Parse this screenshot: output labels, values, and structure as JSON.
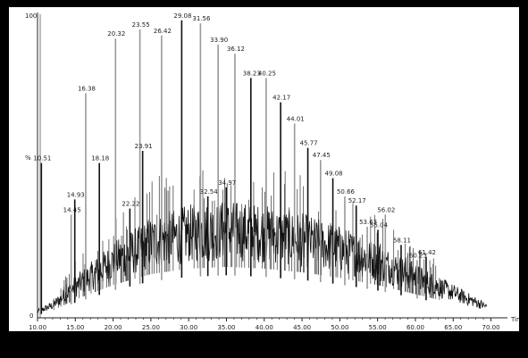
{
  "chart_data": {
    "type": "line",
    "xlabel": "Time",
    "ylabel": "%",
    "xlim": [
      10.0,
      71.0
    ],
    "ylim": [
      0,
      100
    ],
    "y_tick_labels": [
      "0",
      "100"
    ],
    "x_ticks": [
      10,
      15,
      20,
      25,
      30,
      35,
      40,
      45,
      50,
      55,
      60,
      65,
      70
    ],
    "x_tick_labels": [
      "10.00",
      "15.00",
      "20.00",
      "25.00",
      "30.00",
      "35.00",
      "40.00",
      "45.00",
      "50.00",
      "55.00",
      "60.00",
      "65.00",
      "70.00"
    ],
    "grid": false,
    "series": [
      {
        "labeled_peaks": [
          {
            "label": "10.51",
            "x": 10.51,
            "y": 51
          },
          {
            "label": "14.45",
            "x": 14.45,
            "y": 34
          },
          {
            "label": "14.93",
            "x": 14.93,
            "y": 39
          },
          {
            "label": "16.38",
            "x": 16.38,
            "y": 74
          },
          {
            "label": "18.18",
            "x": 18.18,
            "y": 51
          },
          {
            "label": "20.32",
            "x": 20.32,
            "y": 92
          },
          {
            "label": "22.22",
            "x": 22.22,
            "y": 36
          },
          {
            "label": "23.55",
            "x": 23.55,
            "y": 95
          },
          {
            "label": "23.91",
            "x": 23.91,
            "y": 55
          },
          {
            "label": "26.42",
            "x": 26.42,
            "y": 93
          },
          {
            "label": "29.08",
            "x": 29.08,
            "y": 98
          },
          {
            "label": "31.56",
            "x": 31.56,
            "y": 97
          },
          {
            "label": "32.54",
            "x": 32.54,
            "y": 40
          },
          {
            "label": "33.90",
            "x": 33.9,
            "y": 90
          },
          {
            "label": "34.97",
            "x": 34.97,
            "y": 43
          },
          {
            "label": "36.12",
            "x": 36.12,
            "y": 87
          },
          {
            "label": "38.23",
            "x": 38.23,
            "y": 79
          },
          {
            "label": "40.25",
            "x": 40.25,
            "y": 79
          },
          {
            "label": "42.17",
            "x": 42.17,
            "y": 71
          },
          {
            "label": "44.01",
            "x": 44.01,
            "y": 64
          },
          {
            "label": "45.77",
            "x": 45.77,
            "y": 56
          },
          {
            "label": "47.45",
            "x": 47.45,
            "y": 52
          },
          {
            "label": "49.08",
            "x": 49.08,
            "y": 46
          },
          {
            "label": "50.66",
            "x": 50.66,
            "y": 40
          },
          {
            "label": "52.17",
            "x": 52.17,
            "y": 37
          },
          {
            "label": "53.63",
            "x": 53.63,
            "y": 30
          },
          {
            "label": "55.04",
            "x": 55.04,
            "y": 29
          },
          {
            "label": "56.02",
            "x": 56.02,
            "y": 34
          },
          {
            "label": "58.11",
            "x": 58.11,
            "y": 24
          },
          {
            "label": "60.23",
            "x": 60.23,
            "y": 19
          },
          {
            "label": "61.42",
            "x": 61.42,
            "y": 20
          }
        ],
        "baseline_envelope": [
          {
            "x": 10.0,
            "y": 2
          },
          {
            "x": 12.0,
            "y": 4
          },
          {
            "x": 15.0,
            "y": 10
          },
          {
            "x": 20.0,
            "y": 18
          },
          {
            "x": 25.0,
            "y": 24
          },
          {
            "x": 30.0,
            "y": 27
          },
          {
            "x": 35.0,
            "y": 28
          },
          {
            "x": 40.0,
            "y": 27
          },
          {
            "x": 45.0,
            "y": 25
          },
          {
            "x": 50.0,
            "y": 22
          },
          {
            "x": 55.0,
            "y": 18
          },
          {
            "x": 60.0,
            "y": 13
          },
          {
            "x": 65.0,
            "y": 8
          },
          {
            "x": 68.0,
            "y": 5
          },
          {
            "x": 70.0,
            "y": 3
          }
        ]
      }
    ],
    "left_peak": {
      "x": 10.0,
      "y": 100
    }
  }
}
